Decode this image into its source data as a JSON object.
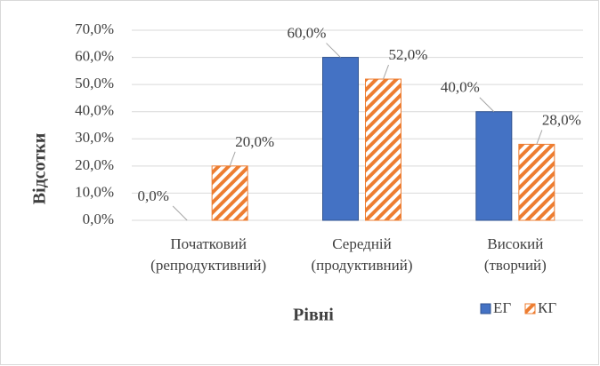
{
  "chart_data": {
    "type": "bar",
    "categories": [
      [
        "Початковий",
        "(репродуктивний)"
      ],
      [
        "Середній",
        "(продуктивний)"
      ],
      [
        "Високий",
        "(творчий)"
      ]
    ],
    "series": [
      {
        "name": "ЕГ",
        "color": "#4472c4",
        "values": [
          0,
          60,
          40
        ],
        "value_labels": [
          "0,0%",
          "60,0%",
          "40,0%"
        ]
      },
      {
        "name": "КГ",
        "color": "#ed7d31",
        "hatch": true,
        "values": [
          20,
          52,
          28
        ],
        "value_labels": [
          "20,0%",
          "52,0%",
          "28,0%"
        ]
      }
    ],
    "ylabel": "Відсотки",
    "xlabel": "Рівні",
    "ylim": [
      0,
      70
    ],
    "yticks": [
      {
        "value": 0,
        "label": "0,0%"
      },
      {
        "value": 10,
        "label": "10,0%"
      },
      {
        "value": 20,
        "label": "20,0%"
      },
      {
        "value": 30,
        "label": "30,0%"
      },
      {
        "value": 40,
        "label": "40,0%"
      },
      {
        "value": 50,
        "label": "50,0%"
      },
      {
        "value": 60,
        "label": "60,0%"
      },
      {
        "value": 70,
        "label": "70,0%"
      }
    ],
    "grid": true,
    "legend": "bottom-right"
  }
}
